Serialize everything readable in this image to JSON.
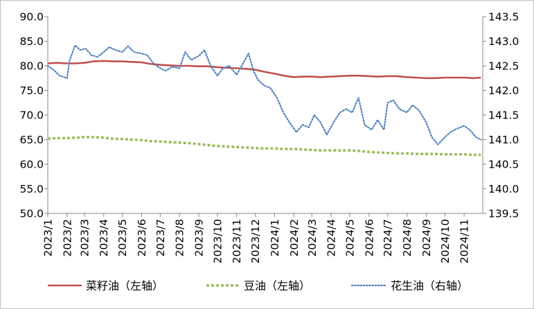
{
  "chart_data": {
    "type": "line",
    "x_ticks": [
      "2023/1",
      "2023/2",
      "2023/3",
      "2023/4",
      "2023/5",
      "2023/6",
      "2023/7",
      "2023/8",
      "2023/9",
      "2023/10",
      "2023/11",
      "2023/12",
      "2024/1",
      "2024/2",
      "2024/3",
      "2024/4",
      "2024/5",
      "2024/6",
      "2024/7",
      "2024/8",
      "2024/9",
      "2024/10",
      "2024/11"
    ],
    "y_left": {
      "range": [
        50.0,
        90.0
      ],
      "ticks": [
        "50.0",
        "55.0",
        "60.0",
        "65.0",
        "70.0",
        "75.0",
        "80.0",
        "85.0",
        "90.0"
      ]
    },
    "y_right": {
      "range": [
        139.5,
        143.5
      ],
      "ticks": [
        "139.5",
        "140.0",
        "140.5",
        "141.0",
        "141.5",
        "142.0",
        "142.5",
        "143.0",
        "143.5"
      ]
    },
    "grid": false,
    "legend_position": "bottom",
    "series": [
      {
        "name": "菜籽油（左轴）",
        "axis": "left",
        "color": "#c0504d",
        "style": "solid",
        "points": [
          [
            "2023-01-01",
            80.5
          ],
          [
            "2023-01-15",
            80.6
          ],
          [
            "2023-02-01",
            80.5
          ],
          [
            "2023-02-15",
            80.5
          ],
          [
            "2023-03-01",
            80.6
          ],
          [
            "2023-03-15",
            80.9
          ],
          [
            "2023-04-01",
            81.0
          ],
          [
            "2023-04-15",
            80.9
          ],
          [
            "2023-05-01",
            80.9
          ],
          [
            "2023-05-15",
            80.8
          ],
          [
            "2023-06-01",
            80.7
          ],
          [
            "2023-06-15",
            80.4
          ],
          [
            "2023-07-01",
            80.2
          ],
          [
            "2023-07-15",
            80.1
          ],
          [
            "2023-08-01",
            80.0
          ],
          [
            "2023-08-15",
            80.0
          ],
          [
            "2023-09-01",
            79.9
          ],
          [
            "2023-09-15",
            79.9
          ],
          [
            "2023-10-01",
            79.7
          ],
          [
            "2023-10-15",
            79.6
          ],
          [
            "2023-11-01",
            79.5
          ],
          [
            "2023-11-15",
            79.4
          ],
          [
            "2023-12-01",
            79.2
          ],
          [
            "2023-12-15",
            78.8
          ],
          [
            "2024-01-01",
            78.4
          ],
          [
            "2024-01-15",
            78.0
          ],
          [
            "2024-02-01",
            77.7
          ],
          [
            "2024-02-15",
            77.8
          ],
          [
            "2024-03-01",
            77.8
          ],
          [
            "2024-03-15",
            77.7
          ],
          [
            "2024-04-01",
            77.8
          ],
          [
            "2024-04-15",
            77.9
          ],
          [
            "2024-05-01",
            78.0
          ],
          [
            "2024-05-15",
            78.0
          ],
          [
            "2024-06-01",
            77.9
          ],
          [
            "2024-06-15",
            77.8
          ],
          [
            "2024-07-01",
            77.9
          ],
          [
            "2024-07-15",
            77.9
          ],
          [
            "2024-08-01",
            77.7
          ],
          [
            "2024-08-15",
            77.6
          ],
          [
            "2024-09-01",
            77.5
          ],
          [
            "2024-09-15",
            77.5
          ],
          [
            "2024-10-01",
            77.6
          ],
          [
            "2024-10-15",
            77.6
          ],
          [
            "2024-11-01",
            77.6
          ],
          [
            "2024-11-15",
            77.5
          ],
          [
            "2024-11-28",
            77.6
          ]
        ]
      },
      {
        "name": "豆油（左轴）",
        "axis": "left",
        "color": "#9bbb59",
        "style": "dashed-x",
        "points": [
          [
            "2023-01-01",
            65.2
          ],
          [
            "2023-01-15",
            65.3
          ],
          [
            "2023-02-01",
            65.3
          ],
          [
            "2023-02-15",
            65.4
          ],
          [
            "2023-03-01",
            65.5
          ],
          [
            "2023-03-15",
            65.5
          ],
          [
            "2023-04-01",
            65.4
          ],
          [
            "2023-04-15",
            65.2
          ],
          [
            "2023-05-01",
            65.1
          ],
          [
            "2023-05-15",
            65.0
          ],
          [
            "2023-06-01",
            64.9
          ],
          [
            "2023-06-15",
            64.7
          ],
          [
            "2023-07-01",
            64.6
          ],
          [
            "2023-07-15",
            64.5
          ],
          [
            "2023-08-01",
            64.4
          ],
          [
            "2023-08-15",
            64.3
          ],
          [
            "2023-09-01",
            64.1
          ],
          [
            "2023-09-15",
            63.9
          ],
          [
            "2023-10-01",
            63.7
          ],
          [
            "2023-10-15",
            63.6
          ],
          [
            "2023-11-01",
            63.5
          ],
          [
            "2023-11-15",
            63.4
          ],
          [
            "2023-12-01",
            63.3
          ],
          [
            "2023-12-15",
            63.2
          ],
          [
            "2024-01-01",
            63.2
          ],
          [
            "2024-01-15",
            63.1
          ],
          [
            "2024-02-01",
            63.1
          ],
          [
            "2024-02-15",
            63.0
          ],
          [
            "2024-03-01",
            62.9
          ],
          [
            "2024-03-15",
            62.8
          ],
          [
            "2024-04-01",
            62.8
          ],
          [
            "2024-04-15",
            62.8
          ],
          [
            "2024-05-01",
            62.8
          ],
          [
            "2024-05-15",
            62.7
          ],
          [
            "2024-06-01",
            62.5
          ],
          [
            "2024-06-15",
            62.4
          ],
          [
            "2024-07-01",
            62.3
          ],
          [
            "2024-07-15",
            62.2
          ],
          [
            "2024-08-01",
            62.2
          ],
          [
            "2024-08-15",
            62.1
          ],
          [
            "2024-09-01",
            62.1
          ],
          [
            "2024-09-15",
            62.1
          ],
          [
            "2024-10-01",
            62.0
          ],
          [
            "2024-10-15",
            62.0
          ],
          [
            "2024-11-01",
            62.0
          ],
          [
            "2024-11-15",
            61.9
          ],
          [
            "2024-11-28",
            61.9
          ]
        ]
      },
      {
        "name": "花生油（右轴）",
        "axis": "right",
        "color": "#4f81bd",
        "style": "dotted",
        "points": [
          [
            "2023-01-01",
            142.5
          ],
          [
            "2023-01-10",
            142.42
          ],
          [
            "2023-01-20",
            142.3
          ],
          [
            "2023-02-01",
            142.25
          ],
          [
            "2023-02-05",
            142.6
          ],
          [
            "2023-02-14",
            142.92
          ],
          [
            "2023-02-22",
            142.82
          ],
          [
            "2023-03-03",
            142.85
          ],
          [
            "2023-03-12",
            142.72
          ],
          [
            "2023-03-22",
            142.68
          ],
          [
            "2023-04-01",
            142.78
          ],
          [
            "2023-04-10",
            142.88
          ],
          [
            "2023-04-20",
            142.82
          ],
          [
            "2023-05-01",
            142.78
          ],
          [
            "2023-05-10",
            142.9
          ],
          [
            "2023-05-20",
            142.78
          ],
          [
            "2023-06-01",
            142.75
          ],
          [
            "2023-06-10",
            142.72
          ],
          [
            "2023-06-20",
            142.55
          ],
          [
            "2023-07-01",
            142.45
          ],
          [
            "2023-07-10",
            142.4
          ],
          [
            "2023-07-20",
            142.48
          ],
          [
            "2023-08-01",
            142.45
          ],
          [
            "2023-08-10",
            142.78
          ],
          [
            "2023-08-20",
            142.62
          ],
          [
            "2023-09-01",
            142.7
          ],
          [
            "2023-09-10",
            142.82
          ],
          [
            "2023-09-20",
            142.5
          ],
          [
            "2023-10-01",
            142.3
          ],
          [
            "2023-10-10",
            142.45
          ],
          [
            "2023-10-20",
            142.5
          ],
          [
            "2023-11-01",
            142.32
          ],
          [
            "2023-11-10",
            142.52
          ],
          [
            "2023-11-20",
            142.75
          ],
          [
            "2023-11-28",
            142.4
          ],
          [
            "2023-12-05",
            142.22
          ],
          [
            "2023-12-15",
            142.1
          ],
          [
            "2023-12-25",
            142.05
          ],
          [
            "2024-01-05",
            141.85
          ],
          [
            "2024-01-15",
            141.55
          ],
          [
            "2024-01-25",
            141.35
          ],
          [
            "2024-02-05",
            141.15
          ],
          [
            "2024-02-15",
            141.3
          ],
          [
            "2024-02-25",
            141.25
          ],
          [
            "2024-03-05",
            141.5
          ],
          [
            "2024-03-15",
            141.35
          ],
          [
            "2024-03-25",
            141.1
          ],
          [
            "2024-04-05",
            141.35
          ],
          [
            "2024-04-15",
            141.55
          ],
          [
            "2024-04-25",
            141.62
          ],
          [
            "2024-05-05",
            141.55
          ],
          [
            "2024-05-15",
            141.85
          ],
          [
            "2024-05-25",
            141.3
          ],
          [
            "2024-06-05",
            141.2
          ],
          [
            "2024-06-15",
            141.4
          ],
          [
            "2024-06-25",
            141.2
          ],
          [
            "2024-07-01",
            141.75
          ],
          [
            "2024-07-10",
            141.8
          ],
          [
            "2024-07-20",
            141.62
          ],
          [
            "2024-08-01",
            141.55
          ],
          [
            "2024-08-10",
            141.7
          ],
          [
            "2024-08-20",
            141.6
          ],
          [
            "2024-09-01",
            141.35
          ],
          [
            "2024-09-10",
            141.05
          ],
          [
            "2024-09-20",
            140.9
          ],
          [
            "2024-10-01",
            141.05
          ],
          [
            "2024-10-10",
            141.15
          ],
          [
            "2024-10-20",
            141.22
          ],
          [
            "2024-11-01",
            141.28
          ],
          [
            "2024-11-10",
            141.2
          ],
          [
            "2024-11-20",
            141.05
          ],
          [
            "2024-11-28",
            141.0
          ]
        ]
      }
    ]
  }
}
